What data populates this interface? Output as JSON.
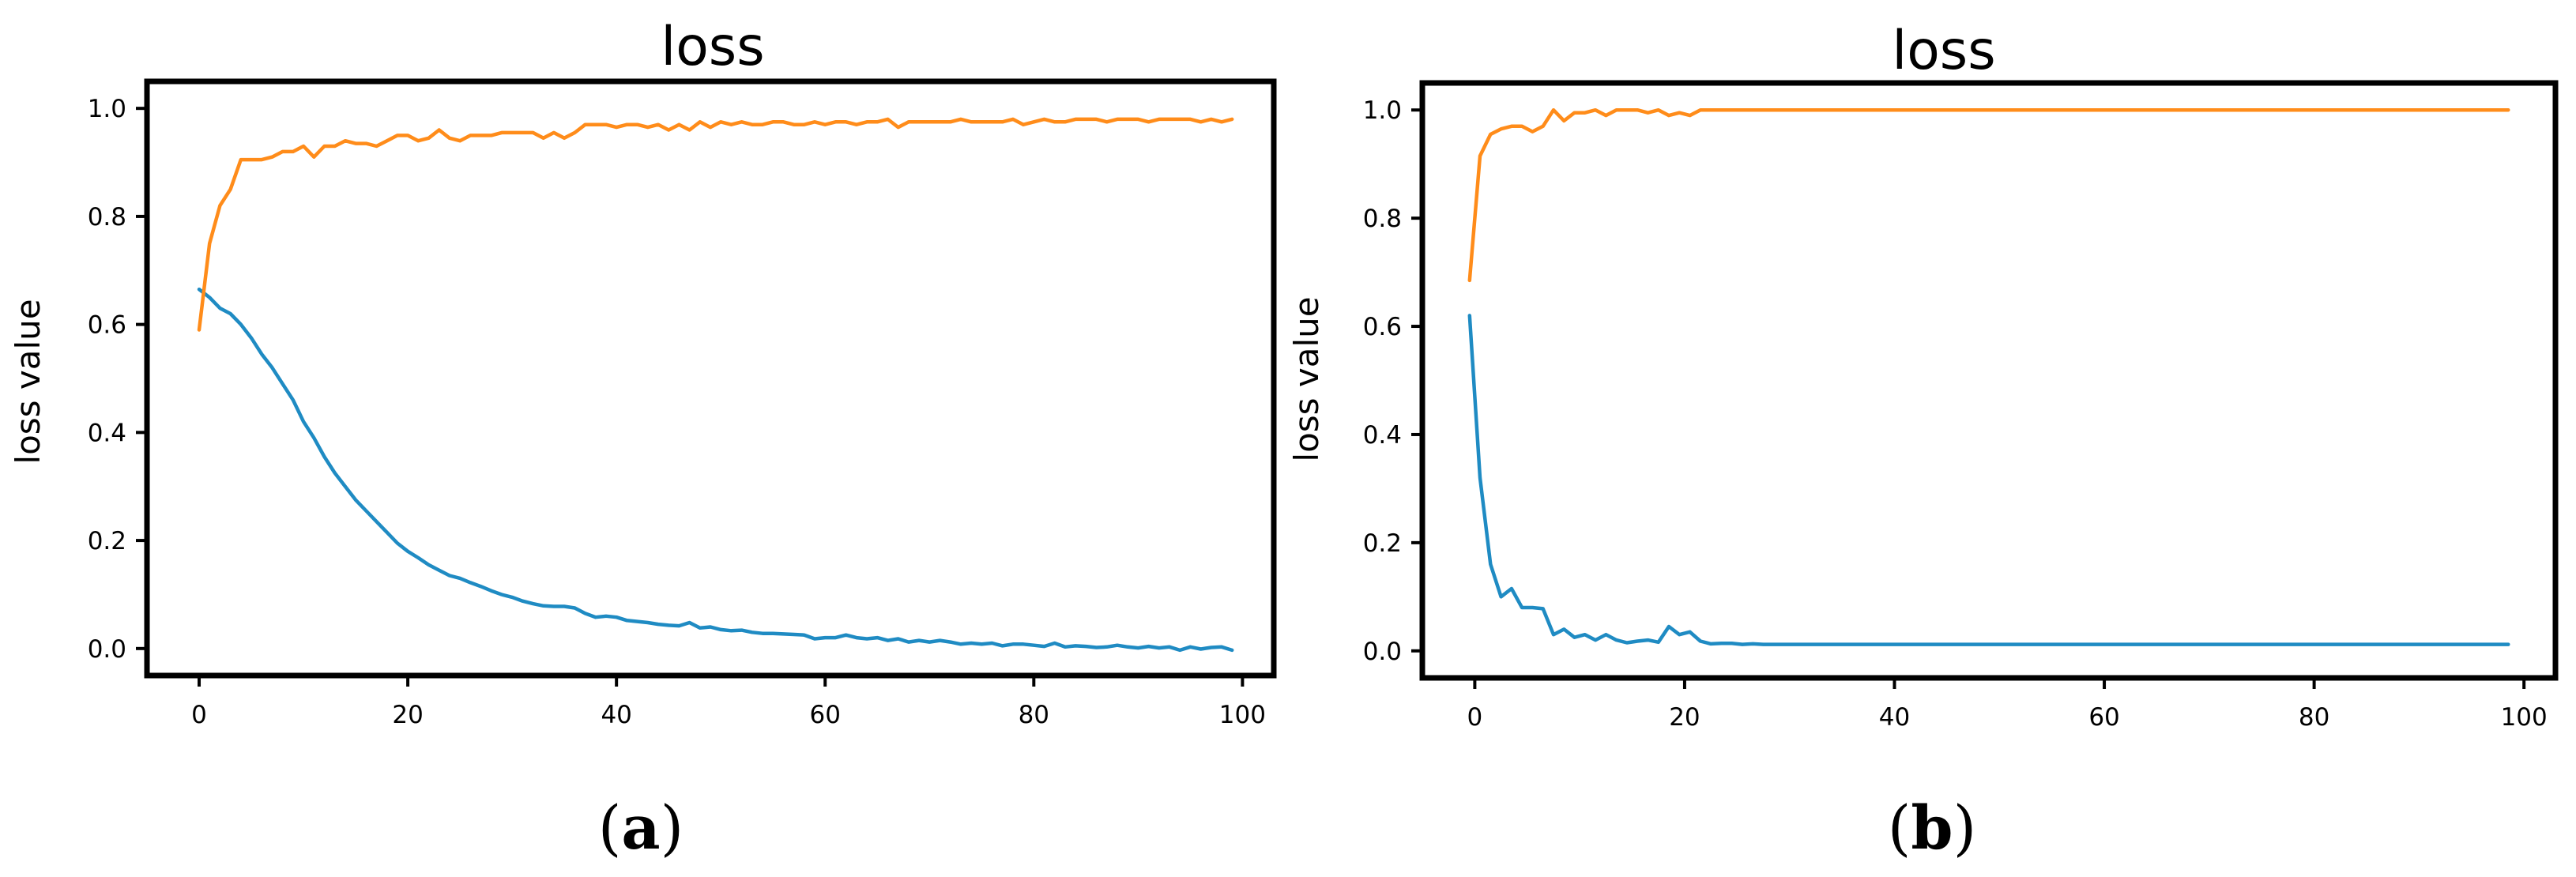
{
  "colors": {
    "series_1": "#1f8bc3",
    "series_2": "#ff8c1a"
  },
  "chart_data": [
    {
      "type": "line",
      "title": "loss",
      "xlabel": "",
      "ylabel": "loss value",
      "xlim": [
        -5,
        103
      ],
      "ylim": [
        -0.05,
        1.05
      ],
      "xticks": [
        0,
        20,
        40,
        60,
        80,
        100
      ],
      "yticks": [
        0.0,
        0.2,
        0.4,
        0.6,
        0.8,
        1.0
      ],
      "xtick_labels": [
        "0",
        "20",
        "40",
        "60",
        "80",
        "100"
      ],
      "ytick_labels": [
        "0.0",
        "0.2",
        "0.4",
        "0.6",
        "0.8",
        "1.0"
      ],
      "grid": false,
      "caption_text": "a",
      "series": [
        {
          "x": [
            0,
            1,
            2,
            3,
            4,
            5,
            6,
            7,
            8,
            9,
            10,
            11,
            12,
            13,
            14,
            15,
            16,
            17,
            18,
            19,
            20,
            21,
            22,
            23,
            24,
            25,
            26,
            27,
            28,
            29,
            30,
            31,
            32,
            33,
            34,
            35,
            36,
            37,
            38,
            39,
            40,
            41,
            42,
            43,
            44,
            45,
            46,
            47,
            48,
            49,
            50,
            51,
            52,
            53,
            54,
            55,
            56,
            57,
            58,
            59,
            60,
            61,
            62,
            63,
            64,
            65,
            66,
            67,
            68,
            69,
            70,
            71,
            72,
            73,
            74,
            75,
            76,
            77,
            78,
            79,
            80,
            81,
            82,
            83,
            84,
            85,
            86,
            87,
            88,
            89,
            90,
            91,
            92,
            93,
            94,
            95,
            96,
            97,
            98,
            99
          ],
          "values": [
            0.665,
            0.65,
            0.63,
            0.62,
            0.6,
            0.575,
            0.545,
            0.52,
            0.49,
            0.46,
            0.42,
            0.39,
            0.355,
            0.325,
            0.3,
            0.275,
            0.255,
            0.235,
            0.215,
            0.195,
            0.18,
            0.168,
            0.155,
            0.145,
            0.135,
            0.13,
            0.122,
            0.115,
            0.107,
            0.1,
            0.095,
            0.088,
            0.083,
            0.079,
            0.078,
            0.078,
            0.075,
            0.065,
            0.058,
            0.06,
            0.058,
            0.052,
            0.05,
            0.048,
            0.045,
            0.043,
            0.042,
            0.048,
            0.038,
            0.04,
            0.035,
            0.033,
            0.034,
            0.03,
            0.028,
            0.028,
            0.027,
            0.026,
            0.025,
            0.018,
            0.02,
            0.02,
            0.025,
            0.02,
            0.018,
            0.02,
            0.015,
            0.018,
            0.012,
            0.015,
            0.012,
            0.015,
            0.012,
            0.008,
            0.01,
            0.008,
            0.01,
            0.005,
            0.008,
            0.008,
            0.006,
            0.004,
            0.01,
            0.003,
            0.005,
            0.004,
            0.002,
            0.003,
            0.006,
            0.003,
            0.001,
            0.004,
            0.001,
            0.003,
            -0.003,
            0.003,
            -0.001,
            0.002,
            0.003,
            -0.003
          ]
        },
        {
          "x": [
            0,
            1,
            2,
            3,
            4,
            5,
            6,
            7,
            8,
            9,
            10,
            11,
            12,
            13,
            14,
            15,
            16,
            17,
            18,
            19,
            20,
            21,
            22,
            23,
            24,
            25,
            26,
            27,
            28,
            29,
            30,
            31,
            32,
            33,
            34,
            35,
            36,
            37,
            38,
            39,
            40,
            41,
            42,
            43,
            44,
            45,
            46,
            47,
            48,
            49,
            50,
            51,
            52,
            53,
            54,
            55,
            56,
            57,
            58,
            59,
            60,
            61,
            62,
            63,
            64,
            65,
            66,
            67,
            68,
            69,
            70,
            71,
            72,
            73,
            74,
            75,
            76,
            77,
            78,
            79,
            80,
            81,
            82,
            83,
            84,
            85,
            86,
            87,
            88,
            89,
            90,
            91,
            92,
            93,
            94,
            95,
            96,
            97,
            98,
            99
          ],
          "values": [
            0.59,
            0.75,
            0.82,
            0.85,
            0.905,
            0.905,
            0.905,
            0.91,
            0.92,
            0.92,
            0.93,
            0.91,
            0.93,
            0.93,
            0.94,
            0.935,
            0.935,
            0.93,
            0.94,
            0.95,
            0.95,
            0.94,
            0.945,
            0.96,
            0.945,
            0.94,
            0.95,
            0.95,
            0.95,
            0.955,
            0.955,
            0.955,
            0.955,
            0.945,
            0.955,
            0.945,
            0.955,
            0.97,
            0.97,
            0.97,
            0.965,
            0.97,
            0.97,
            0.965,
            0.97,
            0.96,
            0.97,
            0.96,
            0.975,
            0.965,
            0.975,
            0.97,
            0.975,
            0.97,
            0.97,
            0.975,
            0.975,
            0.97,
            0.97,
            0.975,
            0.97,
            0.975,
            0.975,
            0.97,
            0.975,
            0.975,
            0.98,
            0.965,
            0.975,
            0.975,
            0.975,
            0.975,
            0.975,
            0.98,
            0.975,
            0.975,
            0.975,
            0.975,
            0.98,
            0.97,
            0.975,
            0.98,
            0.975,
            0.975,
            0.98,
            0.98,
            0.98,
            0.975,
            0.98,
            0.98,
            0.98,
            0.975,
            0.98,
            0.98,
            0.98,
            0.98,
            0.975,
            0.98,
            0.975,
            0.98
          ]
        }
      ]
    },
    {
      "type": "line",
      "title": "loss",
      "xlabel": "",
      "ylabel": "loss value",
      "xlim": [
        -5,
        103
      ],
      "ylim": [
        -0.05,
        1.05
      ],
      "xticks": [
        0,
        20,
        40,
        60,
        80,
        100
      ],
      "yticks": [
        0.0,
        0.2,
        0.4,
        0.6,
        0.8,
        1.0
      ],
      "xtick_labels": [
        "0",
        "20",
        "40",
        "60",
        "80",
        "100"
      ],
      "ytick_labels": [
        "0.0",
        "0.2",
        "0.4",
        "0.6",
        "0.8",
        "1.0"
      ],
      "grid": false,
      "caption_text": "b",
      "series": [
        {
          "x": [
            -0.5,
            0.5,
            1.5,
            2.5,
            3.5,
            4.5,
            5.5,
            6.5,
            7.5,
            8.5,
            9.5,
            10.5,
            11.5,
            12.5,
            13.5,
            14.5,
            15.5,
            16.5,
            17.5,
            18.5,
            19.5,
            20.5,
            21.5,
            22.5,
            23.5,
            24.5,
            25.5,
            26.5,
            27.5,
            28.5,
            29.5,
            30.5,
            35,
            40,
            45,
            50,
            55,
            60,
            65,
            70,
            75,
            80,
            85,
            90,
            95,
            98.5
          ],
          "values": [
            0.62,
            0.32,
            0.16,
            0.1,
            0.115,
            0.08,
            0.08,
            0.078,
            0.03,
            0.04,
            0.025,
            0.03,
            0.02,
            0.03,
            0.02,
            0.015,
            0.018,
            0.02,
            0.016,
            0.045,
            0.03,
            0.035,
            0.018,
            0.013,
            0.014,
            0.014,
            0.012,
            0.013,
            0.012,
            0.012,
            0.012,
            0.012,
            0.012,
            0.012,
            0.012,
            0.012,
            0.012,
            0.012,
            0.012,
            0.012,
            0.012,
            0.012,
            0.012,
            0.012,
            0.012,
            0.012
          ]
        },
        {
          "x": [
            -0.5,
            0.5,
            1.5,
            2.5,
            3.5,
            4.5,
            5.5,
            6.5,
            7.5,
            8.5,
            9.5,
            10.5,
            11.5,
            12.5,
            13.5,
            14.5,
            15.5,
            16.5,
            17.5,
            18.5,
            19.5,
            20.5,
            21.5,
            22.5,
            25,
            30,
            40,
            50,
            60,
            70,
            80,
            90,
            98.5
          ],
          "values": [
            0.685,
            0.915,
            0.955,
            0.965,
            0.97,
            0.97,
            0.96,
            0.97,
            1.0,
            0.98,
            0.995,
            0.995,
            1.0,
            0.99,
            1.0,
            1.0,
            1.0,
            0.995,
            1.0,
            0.99,
            0.995,
            0.99,
            1.0,
            1.0,
            1.0,
            1.0,
            1.0,
            1.0,
            1.0,
            1.0,
            1.0,
            1.0,
            1.0
          ]
        }
      ]
    }
  ]
}
